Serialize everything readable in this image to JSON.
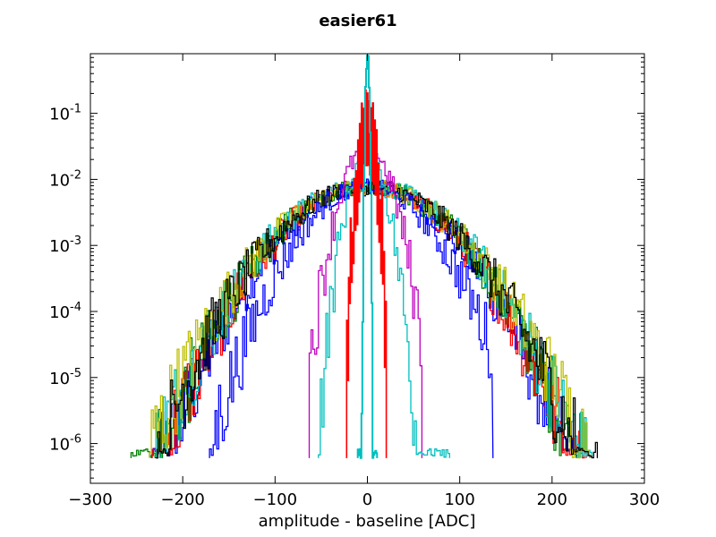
{
  "chart_data": {
    "type": "line",
    "title": "easier61",
    "xlabel": "amplitude - baseline [ADC]",
    "ylabel": "",
    "xlim": [
      -300,
      300
    ],
    "ylim": [
      2.5e-07,
      0.8
    ],
    "yscale": "log",
    "grid": false,
    "legend": "none",
    "drawstyle": "steps",
    "x_ticks": [
      {
        "value": -300,
        "label": "−300"
      },
      {
        "value": -200,
        "label": "−200"
      },
      {
        "value": -100,
        "label": "−100"
      },
      {
        "value": 0,
        "label": "0"
      },
      {
        "value": 100,
        "label": "100"
      },
      {
        "value": 200,
        "label": "200"
      },
      {
        "value": 300,
        "label": "300"
      }
    ],
    "y_ticks": [
      {
        "value": 1e-06,
        "base": "10",
        "exp": "-6"
      },
      {
        "value": 1e-05,
        "base": "10",
        "exp": "-5"
      },
      {
        "value": 0.0001,
        "base": "10",
        "exp": "-4"
      },
      {
        "value": 0.001,
        "base": "10",
        "exp": "-3"
      },
      {
        "value": 0.01,
        "base": "10",
        "exp": "-2"
      },
      {
        "value": 0.1,
        "base": "10",
        "exp": "-1"
      }
    ],
    "series": [
      {
        "color": "#0000ff",
        "kind": "broad",
        "sigma": 50,
        "peak": 0.0075,
        "xmin": -233,
        "xmax": 228
      },
      {
        "color": "#008000",
        "kind": "broad",
        "sigma": 52,
        "peak": 0.008,
        "xmin": -255,
        "xmax": 232
      },
      {
        "color": "#ff0000",
        "kind": "broad",
        "sigma": 51,
        "peak": 0.0078,
        "xmin": -232,
        "xmax": 236
      },
      {
        "color": "#00bfbf",
        "kind": "broad",
        "sigma": 53,
        "peak": 0.0082,
        "xmin": -228,
        "xmax": 242
      },
      {
        "color": "#bfbf00",
        "kind": "broad",
        "sigma": 55,
        "peak": 0.0076,
        "xmin": -235,
        "xmax": 240
      },
      {
        "color": "#000000",
        "kind": "broad",
        "sigma": 53,
        "peak": 0.0079,
        "xmin": -228,
        "xmax": 248
      },
      {
        "color": "#0000ff",
        "kind": "broad",
        "sigma": 40,
        "peak": 0.0078,
        "xmin": -170,
        "xmax": 135
      },
      {
        "color": "#bf00bf",
        "kind": "medium",
        "sigma": 16,
        "peak": 0.03,
        "xmin": -62,
        "xmax": 58
      },
      {
        "color": "#00bfbf",
        "kind": "medium",
        "sigma": 12,
        "peak": 0.025,
        "xmin": -52,
        "xmax": 88
      },
      {
        "color": "#ff0000",
        "kind": "narrow",
        "sigma": 5.5,
        "peak": 0.2,
        "xmin": -22,
        "xmax": 20
      },
      {
        "color": "#00bfbf",
        "kind": "spike",
        "sigma": 1.2,
        "peak": 0.75,
        "xmin": -10,
        "xmax": 10
      }
    ]
  }
}
